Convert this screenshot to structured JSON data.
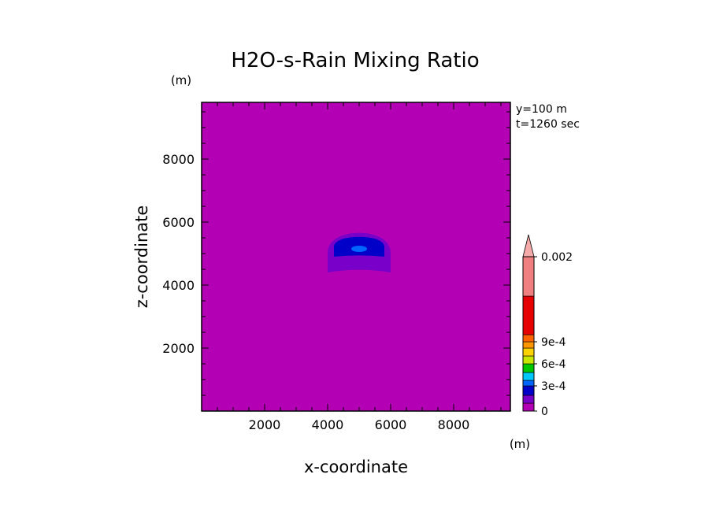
{
  "chart_data": {
    "type": "heatmap",
    "title": "H2O-s-Rain Mixing Ratio",
    "xlabel": "x-coordinate",
    "ylabel": "z-coordinate",
    "x_unit": "(m)",
    "y_unit": "(m)",
    "xlim": [
      0,
      9800
    ],
    "ylim": [
      0,
      9800
    ],
    "xticks": [
      2000,
      4000,
      6000,
      8000
    ],
    "yticks": [
      2000,
      4000,
      6000,
      8000
    ],
    "xtick_labels": [
      "2000",
      "4000",
      "6000",
      "8000"
    ],
    "ytick_labels": [
      "2000",
      "4000",
      "6000",
      "8000"
    ],
    "annotations": [
      "y=100 m",
      "t=1260 sec"
    ],
    "background_value": 0,
    "background_color": "#b400b4",
    "contour_region": {
      "center_x": 5000,
      "base_z": 4400,
      "levels": [
        {
          "range": "0-1e-4",
          "color": "#7800c8",
          "half_width": 1000,
          "top_z": 5800,
          "bottom_z": 4400
        },
        {
          "range": "2e-4-3e-4",
          "color": "#0000c8",
          "half_width": 800,
          "top_z": 5600,
          "bottom_z": 4900
        },
        {
          "range": "3e-4-4e-4",
          "color": "#0064ff",
          "half_width": 250,
          "top_z": 5250,
          "bottom_z": 5050
        }
      ]
    },
    "colorbar": {
      "levels": [
        {
          "value": 0,
          "color": "#b400b4"
        },
        {
          "value": 0.0001,
          "color": "#7800c8"
        },
        {
          "value": 0.0002,
          "color": "#0000c8"
        },
        {
          "value": 0.0003,
          "color": "#0064ff"
        },
        {
          "value": 0.0004,
          "color": "#00c8ff"
        },
        {
          "value": 0.0005,
          "color": "#00c800"
        },
        {
          "value": 0.0006,
          "color": "#c8e600"
        },
        {
          "value": 0.0007,
          "color": "#ffd200"
        },
        {
          "value": 0.0008,
          "color": "#ff9600"
        },
        {
          "value": 0.0009,
          "color": "#ff6400"
        },
        {
          "value": 0.001,
          "color": "#e60000"
        },
        {
          "value": 0.0015,
          "color": "#f08080"
        },
        {
          "value": 0.002,
          "color": "#f5aaaa"
        }
      ],
      "labels": [
        {
          "value": 0,
          "text": "0"
        },
        {
          "value": 0.0003,
          "text": "3e-4"
        },
        {
          "value": 0.0006,
          "text": "6e-4"
        },
        {
          "value": 0.0009,
          "text": "9e-4"
        },
        {
          "value": 0.002,
          "text": "0.002"
        }
      ]
    }
  }
}
